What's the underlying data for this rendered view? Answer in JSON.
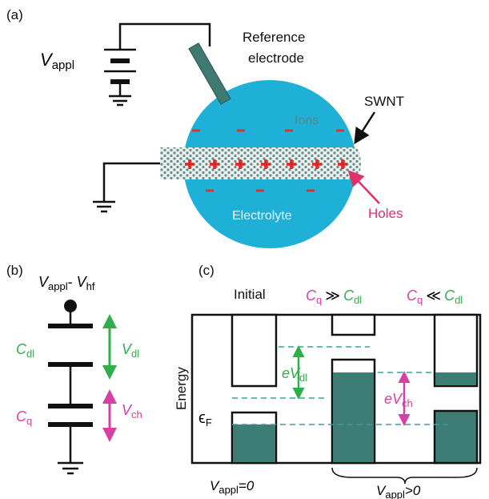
{
  "panel_a": {
    "label": "(a)",
    "voltage": {
      "symbol": "V",
      "subscript": "appl"
    },
    "reference_electrode": [
      "Reference",
      "electrode"
    ],
    "swnt": "SWNT",
    "ions": "Ions",
    "electrolyte": "Electrolyte",
    "holes": "Holes"
  },
  "panel_b": {
    "label": "(b)",
    "top": {
      "v1": "V",
      "s1": "appl",
      "sep": "- ",
      "v2": "V",
      "s2": "hf"
    },
    "c_dl": {
      "symbol": "C",
      "subscript": "dl"
    },
    "v_dl": {
      "symbol": "V",
      "subscript": "dl"
    },
    "c_q": {
      "symbol": "C",
      "subscript": "q"
    },
    "v_ch": {
      "symbol": "V",
      "subscript": "ch"
    }
  },
  "panel_c": {
    "label": "(c)",
    "energy": "Energy",
    "initial": "Initial",
    "case1": {
      "left": {
        "symbol": "C",
        "subscript": "q"
      },
      "relation": "≫",
      "right": {
        "symbol": "C",
        "subscript": "dl"
      }
    },
    "case2": {
      "left": {
        "symbol": "C",
        "subscript": "q"
      },
      "relation": "≪",
      "right": {
        "symbol": "C",
        "subscript": "dl"
      }
    },
    "e_v_dl": {
      "symbol": "eV",
      "subscript": "dl"
    },
    "e_v_ch": {
      "symbol": "eV",
      "subscript": "ch"
    },
    "fermi": {
      "symbol": "ϵ",
      "subscript": "F"
    },
    "cond1": {
      "symbol": "V",
      "subscript": "appl",
      "rest": "=0"
    },
    "cond2": {
      "symbol": "V",
      "subscript": "appl",
      "rest": ">0"
    }
  }
}
